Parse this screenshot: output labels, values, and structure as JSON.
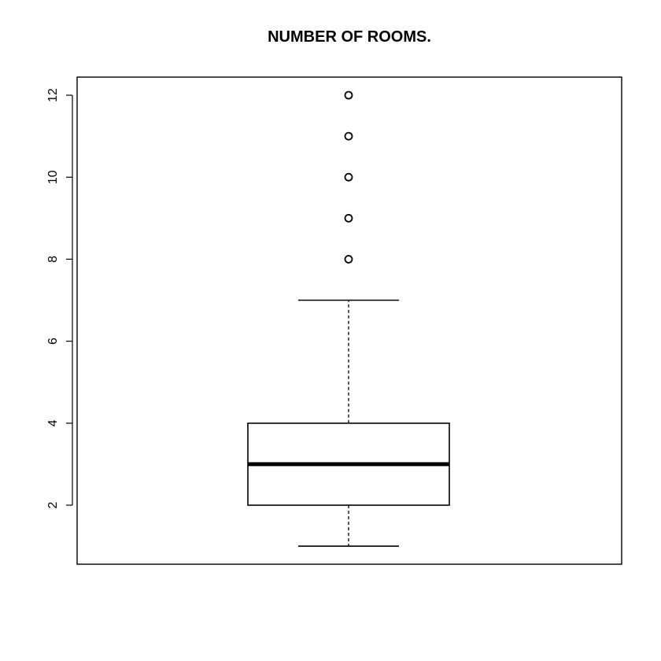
{
  "chart_data": {
    "type": "boxplot",
    "title": "NUMBER OF ROOMS.",
    "xlabel": "",
    "ylabel": "",
    "ylim": [
      0.55,
      12.4
    ],
    "yticks": [
      2,
      4,
      6,
      8,
      10,
      12
    ],
    "ytick_labels": [
      "2",
      "4",
      "6",
      "8",
      "10",
      "12"
    ],
    "grid": false,
    "box": {
      "whisker_low": 1,
      "q1": 2,
      "median": 3,
      "q3": 4,
      "whisker_high": 7,
      "outliers": [
        8,
        9,
        10,
        11,
        12
      ]
    }
  }
}
